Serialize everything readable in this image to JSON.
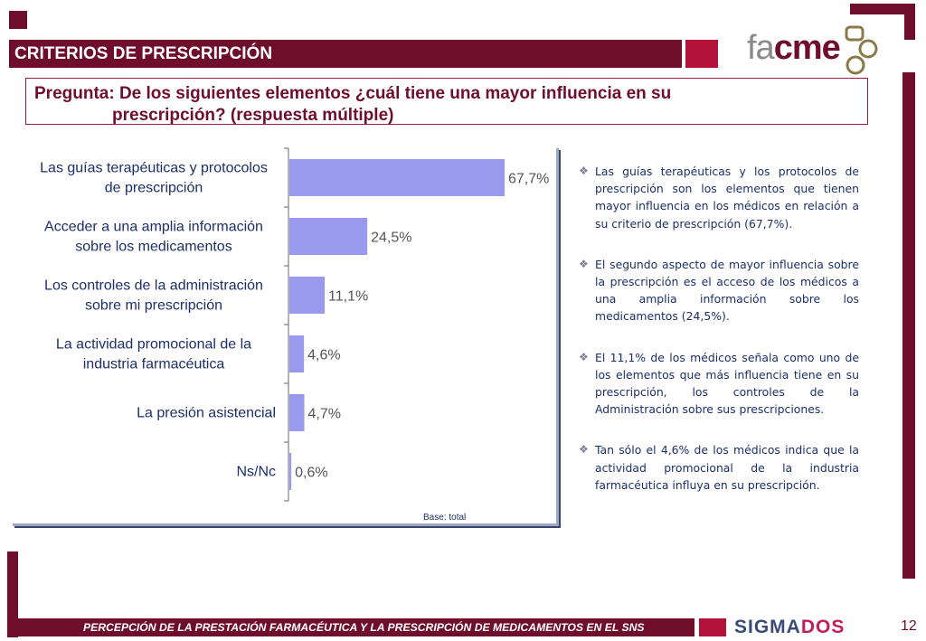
{
  "header": {
    "title": "CRITERIOS DE PRESCRIPCIÓN"
  },
  "question": {
    "line1": "Pregunta: De los siguientes elementos ¿cuál tiene una mayor influencia en su",
    "line2": "prescripción? (respuesta múltiple)"
  },
  "logos": {
    "facme_part1": "fa",
    "facme_part2": "cme",
    "sigmados_part1": "SIGMA",
    "sigmados_part2": "DOS"
  },
  "colors": {
    "brand": "#6e0e2c",
    "accent_red": "#b3123a",
    "bar": "#9999ee",
    "text_blue": "#1c2f6a"
  },
  "chart_data": {
    "type": "bar",
    "orientation": "horizontal",
    "categories": [
      [
        "Las guías terapéuticas y protocolos",
        "de prescripción"
      ],
      [
        "Acceder a una amplia información",
        "sobre los medicamentos"
      ],
      [
        "Los controles de la administración",
        "sobre mi prescripción"
      ],
      [
        "La actividad promocional de la",
        "industria farmacéutica"
      ],
      [
        "La presión asistencial"
      ],
      [
        "Ns/Nc"
      ]
    ],
    "values": [
      67.7,
      24.5,
      11.1,
      4.6,
      4.7,
      0.6
    ],
    "labels": [
      "67,7%",
      "24,5%",
      "11,1%",
      "4,6%",
      "4,7%",
      "0,6%"
    ],
    "xlim": [
      0,
      100
    ],
    "grid": false,
    "legend": false,
    "note": "Base: total"
  },
  "comments": [
    "Las guías terapéuticas y los protocolos de prescripción son los elementos que tienen mayor influencia en los médicos en relación a su criterio de prescripción (67,7%).",
    "El segundo aspecto de mayor influencia sobre la prescripción es el acceso de los médicos a una amplia información sobre los medicamentos (24,5%).",
    "El 11,1% de los médicos señala como uno de los elementos que más influencia tiene en su prescripción, los controles de la Administración sobre sus prescripciones.",
    "Tan sólo el 4,6% de los médicos indica que la actividad promocional de la industria farmacéutica influya en su prescripción."
  ],
  "footer": {
    "title": "PERCEPCIÓN DE LA PRESTACIÓN FARMACÉUTICA Y LA PRESCRIPCIÓN DE MEDICAMENTOS EN EL SNS",
    "page": "12"
  }
}
